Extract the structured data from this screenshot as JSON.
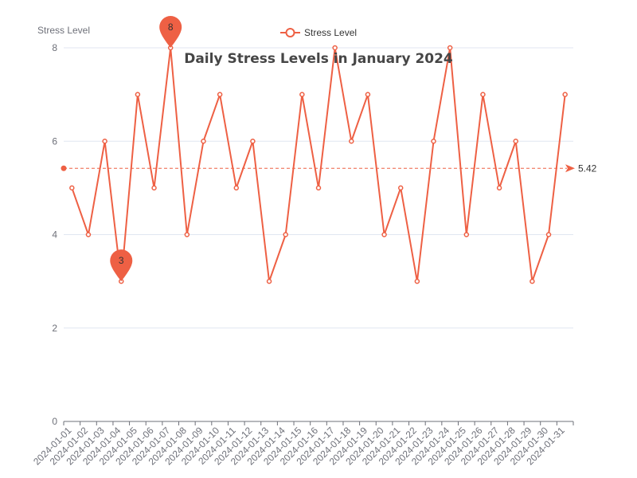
{
  "chart_data": {
    "type": "line",
    "title": "Daily Stress Levels in January 2024",
    "ylabel": "Stress Level",
    "xlabel": "",
    "ylim": [
      0,
      8
    ],
    "yticks": [
      0,
      2,
      4,
      6,
      8
    ],
    "grid": true,
    "legend_position": "top-center",
    "categories": [
      "2024-01-01",
      "2024-01-02",
      "2024-01-03",
      "2024-01-04",
      "2024-01-05",
      "2024-01-06",
      "2024-01-07",
      "2024-01-08",
      "2024-01-09",
      "2024-01-10",
      "2024-01-11",
      "2024-01-12",
      "2024-01-13",
      "2024-01-14",
      "2024-01-15",
      "2024-01-16",
      "2024-01-17",
      "2024-01-18",
      "2024-01-19",
      "2024-01-20",
      "2024-01-21",
      "2024-01-22",
      "2024-01-23",
      "2024-01-24",
      "2024-01-25",
      "2024-01-26",
      "2024-01-27",
      "2024-01-28",
      "2024-01-29",
      "2024-01-30",
      "2024-01-31"
    ],
    "series": [
      {
        "name": "Stress Level",
        "color": "#ee6044",
        "values": [
          5,
          4,
          6,
          3,
          7,
          5,
          8,
          4,
          6,
          7,
          5,
          6,
          3,
          4,
          7,
          5,
          8,
          6,
          7,
          4,
          5,
          3,
          6,
          8,
          4,
          7,
          5,
          6,
          3,
          4,
          7
        ]
      }
    ],
    "mark_points": [
      {
        "type": "max",
        "label": "8",
        "value": 8,
        "category": "2024-01-07"
      },
      {
        "type": "min",
        "label": "3",
        "value": 3,
        "category": "2024-01-04"
      }
    ],
    "mark_line": {
      "type": "average",
      "label": "5.42",
      "value": 5.42
    }
  }
}
